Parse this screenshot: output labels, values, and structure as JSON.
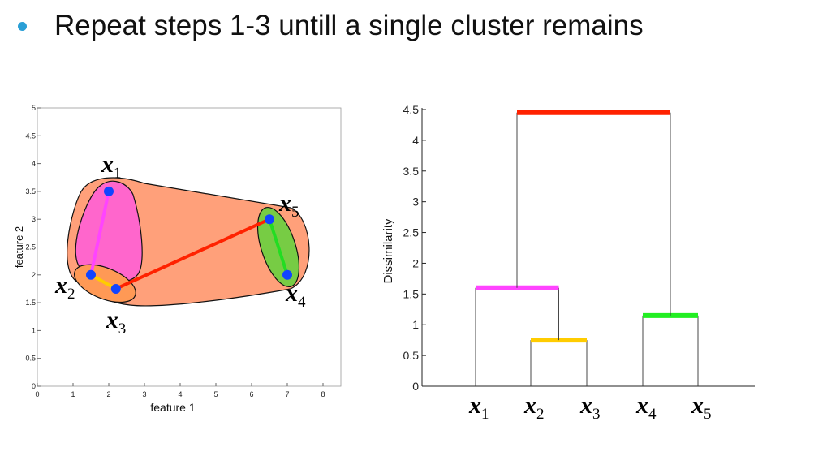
{
  "slide": {
    "bullet_text": "Repeat steps 1-3 untill a single cluster remains",
    "bullet_color": "#2a9fd6"
  },
  "chart_data": [
    {
      "type": "scatter",
      "xlabel": "feature 1",
      "ylabel": "feature 2",
      "xlim": [
        0,
        8.5
      ],
      "ylim": [
        0,
        5
      ],
      "xticks": [
        "0",
        "1",
        "2",
        "3",
        "4",
        "5",
        "6",
        "7",
        "8"
      ],
      "yticks": [
        "0",
        "0.5",
        "1",
        "1.5",
        "2",
        "2.5",
        "3",
        "3.5",
        "4",
        "4.5",
        "5"
      ],
      "points": [
        {
          "label_base": "x",
          "label_sub": "1",
          "x": 2.0,
          "y": 3.5
        },
        {
          "label_base": "x",
          "label_sub": "2",
          "x": 1.5,
          "y": 2.0
        },
        {
          "label_base": "x",
          "label_sub": "3",
          "x": 2.2,
          "y": 1.75
        },
        {
          "label_base": "x",
          "label_sub": "4",
          "x": 7.0,
          "y": 2.0
        },
        {
          "label_base": "x",
          "label_sub": "5",
          "x": 6.5,
          "y": 3.0
        }
      ],
      "links": [
        {
          "from": 1,
          "to": 2,
          "color": "#ffcc00"
        },
        {
          "from": 0,
          "to": 1,
          "color": "#ff44ff"
        },
        {
          "from": 3,
          "to": 4,
          "color": "#22dd22"
        },
        {
          "from": 2,
          "to": 4,
          "color": "#ff2200"
        }
      ],
      "cluster_colors": {
        "outer": "#ffa07a",
        "pink": "#ff66cc",
        "green": "#77cc44",
        "inner": "#ff9955"
      },
      "point_color": "#1144ff"
    },
    {
      "type": "dendrogram",
      "ylabel": "Dissimilarity",
      "ylim": [
        0,
        4.5
      ],
      "yticks": [
        "0",
        "0.5",
        "1",
        "1.5",
        "2",
        "2.5",
        "3",
        "3.5",
        "4",
        "4.5"
      ],
      "leaves": [
        {
          "base": "x",
          "sub": "1"
        },
        {
          "base": "x",
          "sub": "2"
        },
        {
          "base": "x",
          "sub": "3"
        },
        {
          "base": "x",
          "sub": "4"
        },
        {
          "base": "x",
          "sub": "5"
        }
      ],
      "merges": [
        {
          "left_x": 2,
          "right_x": 3,
          "height": 0.75,
          "color": "#ffcc00"
        },
        {
          "left_x": 4,
          "right_x": 5,
          "height": 1.15,
          "color": "#22ee22"
        },
        {
          "left_x": 1,
          "right_x": 2.5,
          "height": 1.6,
          "color": "#ff44ff"
        },
        {
          "left_x": 1.75,
          "right_x": 4.5,
          "height": 4.45,
          "color": "#ff2200"
        }
      ]
    }
  ]
}
